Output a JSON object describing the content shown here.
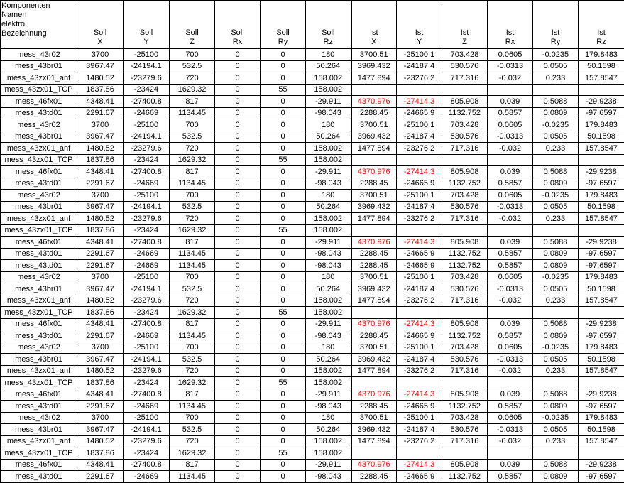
{
  "table": {
    "highlight_color": "#ff0000",
    "header": [
      "Komponenten\nNamen\nelektro.\nBezeichnung",
      "Soll\nX",
      "Soll\nY",
      "Soll\nZ",
      "Soll\nRx",
      "Soll\nRy",
      "Soll\nRz",
      "Ist\nX",
      "Ist\nY",
      "Ist\nZ",
      "Ist\nRx",
      "Ist\nRy",
      "Ist\nRz"
    ],
    "rows": [
      {
        "cells": [
          "mess_43r02",
          "3700",
          "-25100",
          "700",
          "0",
          "0",
          "180",
          "3700.51",
          "-25100.1",
          "703.428",
          "0.0605",
          "-0.0235",
          "179.8483"
        ]
      },
      {
        "cells": [
          "mess_43br01",
          "3967.47",
          "-24194.1",
          "532.5",
          "0",
          "0",
          "50.264",
          "3969.432",
          "-24187.4",
          "530.576",
          "-0.0313",
          "0.0505",
          "50.1598"
        ]
      },
      {
        "cells": [
          "mess_43zx01_anf",
          "1480.52",
          "-23279.6",
          "720",
          "0",
          "0",
          "158.002",
          "1477.894",
          "-23276.2",
          "717.316",
          "-0.032",
          "0.233",
          "157.8547"
        ]
      },
      {
        "cells": [
          "mess_43zx01_TCP",
          "1837.86",
          "-23424",
          "1629.32",
          "0",
          "55",
          "158.002"
        ]
      },
      {
        "cells": [
          "mess_46fx01",
          "4348.41",
          "-27400.8",
          "817",
          "0",
          "0",
          "-29.911",
          "4370.976",
          "-27414.3",
          "805.908",
          "0.039",
          "0.5088",
          "-29.9238"
        ],
        "red_cells": [
          7,
          8
        ]
      },
      {
        "cells": [
          "mess_43td01",
          "2291.67",
          "-24669",
          "1134.45",
          "0",
          "0",
          "-98.043",
          "2288.45",
          "-24665.9",
          "1132.752",
          "0.5857",
          "0.0809",
          "-97.6597"
        ]
      },
      {
        "cells": [
          "mess_43r02",
          "3700",
          "-25100",
          "700",
          "0",
          "0",
          "180",
          "3700.51",
          "-25100.1",
          "703.428",
          "0.0605",
          "-0.0235",
          "179.8483"
        ]
      },
      {
        "cells": [
          "mess_43br01",
          "3967.47",
          "-24194.1",
          "532.5",
          "0",
          "0",
          "50.264",
          "3969.432",
          "-24187.4",
          "530.576",
          "-0.0313",
          "0.0505",
          "50.1598"
        ]
      },
      {
        "cells": [
          "mess_43zx01_anf",
          "1480.52",
          "-23279.6",
          "720",
          "0",
          "0",
          "158.002",
          "1477.894",
          "-23276.2",
          "717.316",
          "-0.032",
          "0.233",
          "157.8547"
        ]
      },
      {
        "cells": [
          "mess_43zx01_TCP",
          "1837.86",
          "-23424",
          "1629.32",
          "0",
          "55",
          "158.002"
        ]
      },
      {
        "cells": [
          "mess_46fx01",
          "4348.41",
          "-27400.8",
          "817",
          "0",
          "0",
          "-29.911",
          "4370.976",
          "-27414.3",
          "805.908",
          "0.039",
          "0.5088",
          "-29.9238"
        ],
        "red_cells": [
          7,
          8
        ]
      },
      {
        "cells": [
          "mess_43td01",
          "2291.67",
          "-24669",
          "1134.45",
          "0",
          "0",
          "-98.043",
          "2288.45",
          "-24665.9",
          "1132.752",
          "0.5857",
          "0.0809",
          "-97.6597"
        ]
      },
      {
        "cells": [
          "mess_43r02",
          "3700",
          "-25100",
          "700",
          "0",
          "0",
          "180",
          "3700.51",
          "-25100.1",
          "703.428",
          "0.0605",
          "-0.0235",
          "179.8483"
        ]
      },
      {
        "cells": [
          "mess_43br01",
          "3967.47",
          "-24194.1",
          "532.5",
          "0",
          "0",
          "50.264",
          "3969.432",
          "-24187.4",
          "530.576",
          "-0.0313",
          "0.0505",
          "50.1598"
        ]
      },
      {
        "cells": [
          "mess_43zx01_anf",
          "1480.52",
          "-23279.6",
          "720",
          "0",
          "0",
          "158.002",
          "1477.894",
          "-23276.2",
          "717.316",
          "-0.032",
          "0.233",
          "157.8547"
        ]
      },
      {
        "cells": [
          "mess_43zx01_TCP",
          "1837.86",
          "-23424",
          "1629.32",
          "0",
          "55",
          "158.002"
        ]
      },
      {
        "cells": [
          "mess_46fx01",
          "4348.41",
          "-27400.8",
          "817",
          "0",
          "0",
          "-29.911",
          "4370.976",
          "-27414.3",
          "805.908",
          "0.039",
          "0.5088",
          "-29.9238"
        ],
        "red_cells": [
          7,
          8
        ]
      },
      {
        "cells": [
          "mess_43td01",
          "2291.67",
          "-24669",
          "1134.45",
          "0",
          "0",
          "-98.043",
          "2288.45",
          "-24665.9",
          "1132.752",
          "0.5857",
          "0.0809",
          "-97.6597"
        ]
      },
      {
        "cells": [
          "mess_43td01",
          "2291.67",
          "-24669",
          "1134.45",
          "0",
          "0",
          "-98.043",
          "2288.45",
          "-24665.9",
          "1132.752",
          "0.5857",
          "0.0809",
          "-97.6597"
        ]
      },
      {
        "cells": [
          "mess_43r02",
          "3700",
          "-25100",
          "700",
          "0",
          "0",
          "180",
          "3700.51",
          "-25100.1",
          "703.428",
          "0.0605",
          "-0.0235",
          "179.8483"
        ]
      },
      {
        "cells": [
          "mess_43br01",
          "3967.47",
          "-24194.1",
          "532.5",
          "0",
          "0",
          "50.264",
          "3969.432",
          "-24187.4",
          "530.576",
          "-0.0313",
          "0.0505",
          "50.1598"
        ]
      },
      {
        "cells": [
          "mess_43zx01_anf",
          "1480.52",
          "-23279.6",
          "720",
          "0",
          "0",
          "158.002",
          "1477.894",
          "-23276.2",
          "717.316",
          "-0.032",
          "0.233",
          "157.8547"
        ]
      },
      {
        "cells": [
          "mess_43zx01_TCP",
          "1837.86",
          "-23424",
          "1629.32",
          "0",
          "55",
          "158.002"
        ]
      },
      {
        "cells": [
          "mess_46fx01",
          "4348.41",
          "-27400.8",
          "817",
          "0",
          "0",
          "-29.911",
          "4370.976",
          "-27414.3",
          "805.908",
          "0.039",
          "0.5088",
          "-29.9238"
        ],
        "red_cells": [
          7,
          8
        ]
      },
      {
        "cells": [
          "mess_43td01",
          "2291.67",
          "-24669",
          "1134.45",
          "0",
          "0",
          "-98.043",
          "2288.45",
          "-24665.9",
          "1132.752",
          "0.5857",
          "0.0809",
          "-97.6597"
        ]
      },
      {
        "cells": [
          "mess_43r02",
          "3700",
          "-25100",
          "700",
          "0",
          "0",
          "180",
          "3700.51",
          "-25100.1",
          "703.428",
          "0.0605",
          "-0.0235",
          "179.8483"
        ]
      },
      {
        "cells": [
          "mess_43br01",
          "3967.47",
          "-24194.1",
          "532.5",
          "0",
          "0",
          "50.264",
          "3969.432",
          "-24187.4",
          "530.576",
          "-0.0313",
          "0.0505",
          "50.1598"
        ]
      },
      {
        "cells": [
          "mess_43zx01_anf",
          "1480.52",
          "-23279.6",
          "720",
          "0",
          "0",
          "158.002",
          "1477.894",
          "-23276.2",
          "717.316",
          "-0.032",
          "0.233",
          "157.8547"
        ]
      },
      {
        "cells": [
          "mess_43zx01_TCP",
          "1837.86",
          "-23424",
          "1629.32",
          "0",
          "55",
          "158.002"
        ]
      },
      {
        "cells": [
          "mess_46fx01",
          "4348.41",
          "-27400.8",
          "817",
          "0",
          "0",
          "-29.911",
          "4370.976",
          "-27414.3",
          "805.908",
          "0.039",
          "0.5088",
          "-29.9238"
        ],
        "red_cells": [
          7,
          8
        ]
      },
      {
        "cells": [
          "mess_43td01",
          "2291.67",
          "-24669",
          "1134.45",
          "0",
          "0",
          "-98.043",
          "2288.45",
          "-24665.9",
          "1132.752",
          "0.5857",
          "0.0809",
          "-97.6597"
        ]
      },
      {
        "cells": [
          "mess_43r02",
          "3700",
          "-25100",
          "700",
          "0",
          "0",
          "180",
          "3700.51",
          "-25100.1",
          "703.428",
          "0.0605",
          "-0.0235",
          "179.8483"
        ]
      },
      {
        "cells": [
          "mess_43br01",
          "3967.47",
          "-24194.1",
          "532.5",
          "0",
          "0",
          "50.264",
          "3969.432",
          "-24187.4",
          "530.576",
          "-0.0313",
          "0.0505",
          "50.1598"
        ]
      },
      {
        "cells": [
          "mess_43zx01_anf",
          "1480.52",
          "-23279.6",
          "720",
          "0",
          "0",
          "158.002",
          "1477.894",
          "-23276.2",
          "717.316",
          "-0.032",
          "0.233",
          "157.8547"
        ]
      },
      {
        "cells": [
          "mess_43zx01_TCP",
          "1837.86",
          "-23424",
          "1629.32",
          "0",
          "55",
          "158.002"
        ]
      },
      {
        "cells": [
          "mess_46fx01",
          "4348.41",
          "-27400.8",
          "817",
          "0",
          "0",
          "-29.911",
          "4370.976",
          "-27414.3",
          "805.908",
          "0.039",
          "0.5088",
          "-29.9238"
        ],
        "red_cells": [
          7,
          8
        ]
      },
      {
        "cells": [
          "mess_43td01",
          "2291.67",
          "-24669",
          "1134.45",
          "0",
          "0",
          "-98.043",
          "2288.45",
          "-24665.9",
          "1132.752",
          "0.5857",
          "0.0809",
          "-97.6597"
        ]
      }
    ]
  }
}
